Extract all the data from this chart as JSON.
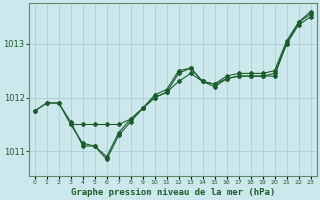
{
  "background_color": "#cde8ec",
  "grid_color": "#a8d0d8",
  "line_color": "#1a5c2a",
  "spine_color": "#5a8a6a",
  "title": "Graphe pression niveau de la mer (hPa)",
  "ylabel_ticks": [
    1011,
    1012,
    1013
  ],
  "xlim": [
    -0.5,
    23.5
  ],
  "ylim": [
    1010.55,
    1013.75
  ],
  "x_ticks": [
    0,
    1,
    2,
    3,
    4,
    5,
    6,
    7,
    8,
    9,
    10,
    11,
    12,
    13,
    14,
    15,
    16,
    17,
    18,
    19,
    20,
    21,
    22,
    23
  ],
  "series": [
    {
      "x": [
        0,
        1,
        2,
        3,
        4,
        5,
        6,
        7,
        8,
        9,
        10,
        11,
        12,
        13,
        14,
        15,
        16,
        17,
        18,
        19,
        20,
        21,
        22,
        23
      ],
      "y": [
        1011.75,
        1011.9,
        1011.9,
        1011.55,
        1011.1,
        1011.1,
        1010.9,
        1011.35,
        1011.6,
        1011.8,
        1012.05,
        1012.15,
        1012.5,
        1012.55,
        1012.3,
        1012.25,
        1012.4,
        1012.45,
        1012.45,
        1012.45,
        1012.5,
        1013.05,
        1013.4,
        1013.55
      ],
      "marker": "D",
      "markersize": 2.0
    },
    {
      "x": [
        0,
        1,
        2,
        3,
        4,
        5,
        6,
        7,
        8,
        9,
        10,
        11,
        12,
        13,
        14,
        15,
        16,
        17,
        18,
        19,
        20,
        21,
        22,
        23
      ],
      "y": [
        1011.75,
        1011.9,
        1011.9,
        1011.5,
        1011.5,
        1011.5,
        1011.5,
        1011.5,
        1011.6,
        1011.8,
        1012.0,
        1012.1,
        1012.3,
        1012.45,
        1012.3,
        1012.25,
        1012.35,
        1012.4,
        1012.4,
        1012.4,
        1012.4,
        1013.0,
        1013.35,
        1013.5
      ],
      "marker": "D",
      "markersize": 2.0
    },
    {
      "x": [
        3,
        4,
        5,
        6,
        7,
        8,
        9,
        10,
        11,
        12,
        13,
        14,
        15,
        16,
        17,
        18,
        19,
        20,
        21,
        22,
        23
      ],
      "y": [
        1011.5,
        1011.15,
        1011.1,
        1010.85,
        1011.3,
        1011.55,
        1011.8,
        1012.0,
        1012.1,
        1012.45,
        1012.55,
        1012.3,
        1012.2,
        1012.35,
        1012.4,
        1012.4,
        1012.4,
        1012.45,
        1013.0,
        1013.4,
        1013.6
      ],
      "marker": "D",
      "markersize": 2.0
    }
  ],
  "extra_line": {
    "x": [
      0,
      1,
      2,
      3,
      4,
      5,
      6,
      7,
      8,
      9,
      10,
      11,
      12,
      13,
      14,
      15,
      16,
      17,
      18,
      19,
      20,
      21,
      22,
      23
    ],
    "y": [
      1011.75,
      1011.9,
      1011.9,
      1011.55,
      1011.55,
      1011.55,
      1011.55,
      1011.55,
      1011.6,
      1011.8,
      1012.0,
      1012.1,
      1012.3,
      1012.45,
      1012.3,
      1012.25,
      1012.35,
      1012.4,
      1012.4,
      1012.4,
      1012.4,
      1013.0,
      1013.35,
      1013.5
    ]
  }
}
